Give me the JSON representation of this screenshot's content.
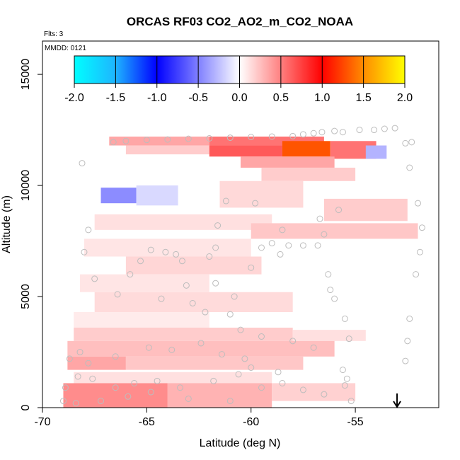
{
  "chart_data": {
    "type": "heatmap",
    "title": "ORCAS RF03 CO2_AO2_m_CO2_NOAA",
    "flights_label": "Flts: 3",
    "date_label": "MMDD: 0121",
    "xlabel": "Latitude (deg N)",
    "ylabel": "Altitude (m)",
    "xlim": [
      -70,
      -51
    ],
    "ylim": [
      0,
      16500
    ],
    "x_ticks": [
      -70,
      -65,
      -60,
      -55
    ],
    "x_tick_labels": [
      "-70",
      "-65",
      "-60",
      "-55"
    ],
    "y_ticks": [
      0,
      5000,
      10000,
      15000
    ],
    "y_tick_labels": [
      "0",
      "5000",
      "10000",
      "15000"
    ],
    "colorbar": {
      "range": [
        -2.0,
        2.0
      ],
      "ticks": [
        -2.0,
        -1.5,
        -1.0,
        -0.5,
        0.0,
        0.5,
        1.0,
        1.5,
        2.0
      ],
      "tick_labels": [
        "-2.0",
        "-1.5",
        "-1.0",
        "-0.5",
        "0.0",
        "0.5",
        "1.0",
        "1.5",
        "2.0"
      ],
      "colors": [
        "#00ffff",
        "#1e90ff",
        "#0000ff",
        "#ffffff",
        "#ff0000",
        "#ff8c00",
        "#ffff00"
      ]
    },
    "cells": [
      {
        "lat": [
          -66.8,
          -62.0
        ],
        "alt": [
          11800,
          12200
        ],
        "v": 0.35
      },
      {
        "lat": [
          -62.0,
          -56.5
        ],
        "alt": [
          11800,
          12200
        ],
        "v": 0.55
      },
      {
        "lat": [
          -66.0,
          -62.0
        ],
        "alt": [
          11400,
          11800
        ],
        "v": 0.2
      },
      {
        "lat": [
          -62.0,
          -58.5
        ],
        "alt": [
          11300,
          11800
        ],
        "v": 0.65
      },
      {
        "lat": [
          -58.5,
          -56.2
        ],
        "alt": [
          11300,
          12000
        ],
        "v": 1.3
      },
      {
        "lat": [
          -56.2,
          -54.0
        ],
        "alt": [
          11200,
          12000
        ],
        "v": 0.55
      },
      {
        "lat": [
          -60.5,
          -56.0
        ],
        "alt": [
          10800,
          11300
        ],
        "v": 0.35
      },
      {
        "lat": [
          -59.5,
          -55.0
        ],
        "alt": [
          10200,
          10800
        ],
        "v": 0.2
      },
      {
        "lat": [
          -67.2,
          -65.5
        ],
        "alt": [
          9200,
          9900
        ],
        "v": -0.45
      },
      {
        "lat": [
          -65.5,
          -63.5
        ],
        "alt": [
          9100,
          10000
        ],
        "v": -0.15
      },
      {
        "lat": [
          -61.5,
          -57.5
        ],
        "alt": [
          9000,
          10200
        ],
        "v": 0.15
      },
      {
        "lat": [
          -56.5,
          -52.5
        ],
        "alt": [
          8400,
          9400
        ],
        "v": 0.2
      },
      {
        "lat": [
          -67.5,
          -59.0
        ],
        "alt": [
          8000,
          8700
        ],
        "v": 0.12
      },
      {
        "lat": [
          -60.0,
          -52.0
        ],
        "alt": [
          7600,
          8300
        ],
        "v": 0.22
      },
      {
        "lat": [
          -68.0,
          -60.0
        ],
        "alt": [
          6800,
          7600
        ],
        "v": 0.1
      },
      {
        "lat": [
          -66.0,
          -59.5
        ],
        "alt": [
          6000,
          6800
        ],
        "v": 0.16
      },
      {
        "lat": [
          -68.2,
          -62.0
        ],
        "alt": [
          5200,
          6000
        ],
        "v": 0.1
      },
      {
        "lat": [
          -67.5,
          -58.0
        ],
        "alt": [
          4300,
          5200
        ],
        "v": 0.14
      },
      {
        "lat": [
          -68.5,
          -62.0
        ],
        "alt": [
          3600,
          4300
        ],
        "v": 0.08
      },
      {
        "lat": [
          -68.5,
          -58.0
        ],
        "alt": [
          3000,
          3600
        ],
        "v": 0.2
      },
      {
        "lat": [
          -58.0,
          -54.5
        ],
        "alt": [
          3000,
          3500
        ],
        "v": 0.12
      },
      {
        "lat": [
          -68.8,
          -56.0
        ],
        "alt": [
          2300,
          3000
        ],
        "v": 0.25
      },
      {
        "lat": [
          -68.8,
          -66.0
        ],
        "alt": [
          1700,
          2300
        ],
        "v": 0.35
      },
      {
        "lat": [
          -66.0,
          -57.5
        ],
        "alt": [
          1700,
          2300
        ],
        "v": 0.22
      },
      {
        "lat": [
          -68.5,
          -59.0
        ],
        "alt": [
          1100,
          1600
        ],
        "v": 0.12
      },
      {
        "lat": [
          -69.0,
          -64.0
        ],
        "alt": [
          0,
          1100
        ],
        "v": 0.45
      },
      {
        "lat": [
          -64.0,
          -59.0
        ],
        "alt": [
          0,
          1100
        ],
        "v": 0.3
      },
      {
        "lat": [
          -59.0,
          -55.0
        ],
        "alt": [
          300,
          1100
        ],
        "v": 0.18
      },
      {
        "lat": [
          -54.5,
          -53.5
        ],
        "alt": [
          11200,
          11800
        ],
        "v": -0.3
      }
    ],
    "points": [
      [
        -66.6,
        11950
      ],
      [
        -66.0,
        12000
      ],
      [
        -65.0,
        12050
      ],
      [
        -64.0,
        12070
      ],
      [
        -63.0,
        12100
      ],
      [
        -62.0,
        12120
      ],
      [
        -61.0,
        12150
      ],
      [
        -60.0,
        12180
      ],
      [
        -59.0,
        12200
      ],
      [
        -58.0,
        12220
      ],
      [
        -57.5,
        12300
      ],
      [
        -57.0,
        12350
      ],
      [
        -56.6,
        12400
      ],
      [
        -56.0,
        12450
      ],
      [
        -55.6,
        12400
      ],
      [
        -54.8,
        12500
      ],
      [
        -54.1,
        12500
      ],
      [
        -53.6,
        12550
      ],
      [
        -53.1,
        12580
      ],
      [
        -52.6,
        11900
      ],
      [
        -52.4,
        10800
      ],
      [
        -52.0,
        9200
      ],
      [
        -51.8,
        8100
      ],
      [
        -51.9,
        7000
      ],
      [
        -52.1,
        6000
      ],
      [
        -52.5,
        3000
      ],
      [
        -52.6,
        2100
      ],
      [
        -52.4,
        4000
      ],
      [
        -52.3,
        11950
      ],
      [
        -55.8,
        8900
      ],
      [
        -56.7,
        8500
      ],
      [
        -58.5,
        8000
      ],
      [
        -59.8,
        9200
      ],
      [
        -61.2,
        9300
      ],
      [
        -61.6,
        8200
      ],
      [
        -61.7,
        7200
      ],
      [
        -56.5,
        7800
      ],
      [
        -56.8,
        7300
      ],
      [
        -57.5,
        7300
      ],
      [
        -58.2,
        7300
      ],
      [
        -59.0,
        7400
      ],
      [
        -59.5,
        7200
      ],
      [
        -58.6,
        6900
      ],
      [
        -56.3,
        6000
      ],
      [
        -56.2,
        5300
      ],
      [
        -56.0,
        4900
      ],
      [
        -55.5,
        4000
      ],
      [
        -55.3,
        3100
      ],
      [
        -55.6,
        1700
      ],
      [
        -55.4,
        1300
      ],
      [
        -55.5,
        1000
      ],
      [
        -55.2,
        300
      ],
      [
        -56.5,
        600
      ],
      [
        -57.5,
        800
      ],
      [
        -58.5,
        1100
      ],
      [
        -59.5,
        900
      ],
      [
        -60.6,
        1500
      ],
      [
        -61.8,
        1200
      ],
      [
        -63.4,
        900
      ],
      [
        -64.5,
        1200
      ],
      [
        -65.6,
        1100
      ],
      [
        -66.5,
        900
      ],
      [
        -67.6,
        1300
      ],
      [
        -68.3,
        1400
      ],
      [
        -68.9,
        900
      ],
      [
        -69.0,
        300
      ],
      [
        -68.4,
        200
      ],
      [
        -67.2,
        300
      ],
      [
        -65.9,
        500
      ],
      [
        -64.8,
        700
      ],
      [
        -63.0,
        400
      ],
      [
        -61.0,
        300
      ],
      [
        -60.3,
        2200
      ],
      [
        -61.4,
        2400
      ],
      [
        -62.4,
        2900
      ],
      [
        -63.8,
        2600
      ],
      [
        -64.9,
        2700
      ],
      [
        -66.5,
        2300
      ],
      [
        -67.8,
        2000
      ],
      [
        -68.7,
        2200
      ],
      [
        -68.2,
        2500
      ],
      [
        -67.5,
        5800
      ],
      [
        -68.0,
        7000
      ],
      [
        -67.8,
        8000
      ],
      [
        -64.1,
        7000
      ],
      [
        -63.3,
        6600
      ],
      [
        -63.1,
        5500
      ],
      [
        -62.8,
        4700
      ],
      [
        -64.3,
        4900
      ],
      [
        -65.8,
        6000
      ],
      [
        -66.4,
        5100
      ],
      [
        -62.2,
        4300
      ],
      [
        -61.0,
        4200
      ],
      [
        -60.5,
        3500
      ],
      [
        -59.5,
        3200
      ],
      [
        -58.0,
        3000
      ],
      [
        -57.0,
        2700
      ],
      [
        -58.7,
        1600
      ],
      [
        -60.0,
        1800
      ],
      [
        -61.7,
        5600
      ],
      [
        -60.8,
        5000
      ],
      [
        -60.0,
        6300
      ],
      [
        -62.0,
        6800
      ],
      [
        -63.6,
        6900
      ],
      [
        -64.8,
        7100
      ],
      [
        -65.3,
        6600
      ],
      [
        -68.1,
        11000
      ]
    ],
    "arrow_lat": -53.0
  }
}
